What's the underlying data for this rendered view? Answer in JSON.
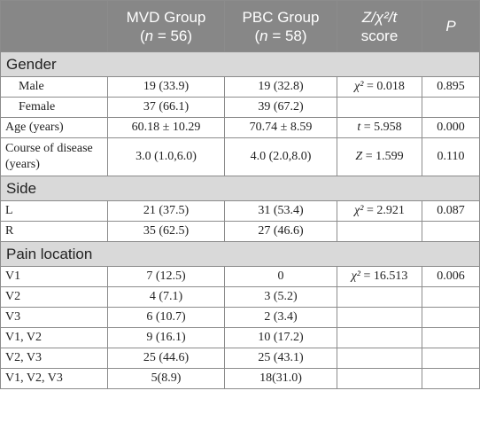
{
  "header": {
    "col0": "",
    "col1_line1": "MVD Group",
    "col1_line2_pre": "(",
    "col1_n": "n",
    "col1_line2_post": " = 56)",
    "col2_line1": "PBC Group",
    "col2_line2_pre": "(",
    "col2_n": "n",
    "col2_line2_post": " = 58)",
    "col3_line1": "Z/χ²/t",
    "col3_line2": "score",
    "col4": "P"
  },
  "sections": [
    {
      "title": "Gender",
      "rows": [
        {
          "label": "Male",
          "mvd": "19 (33.9)",
          "pbc": "19 (32.8)",
          "stat": "χ² = 0.018",
          "p": "0.895"
        },
        {
          "label": "Female",
          "mvd": "37 (66.1)",
          "pbc": "39 (67.2)",
          "stat": "",
          "p": ""
        },
        {
          "label": "Age (years)",
          "mvd": "60.18 ± 10.29",
          "pbc": "70.74 ± 8.59",
          "stat": "t = 5.958",
          "p": "0.000"
        },
        {
          "label": "Course of disease (years)",
          "mvd": "3.0 (1.0,6.0)",
          "pbc": "4.0 (2.0,8.0)",
          "stat": "Z = 1.599",
          "p": "0.110"
        }
      ]
    },
    {
      "title": "Side",
      "rows": [
        {
          "label": "L",
          "mvd": "21 (37.5)",
          "pbc": "31 (53.4)",
          "stat": "χ² = 2.921",
          "p": "0.087"
        },
        {
          "label": "R",
          "mvd": "35 (62.5)",
          "pbc": "27 (46.6)",
          "stat": "",
          "p": ""
        }
      ]
    },
    {
      "title": "Pain location",
      "rows": [
        {
          "label": "V1",
          "mvd": "7 (12.5)",
          "pbc": "0",
          "stat": "χ² = 16.513",
          "p": "0.006"
        },
        {
          "label": "V2",
          "mvd": "4 (7.1)",
          "pbc": "3 (5.2)",
          "stat": "",
          "p": ""
        },
        {
          "label": "V3",
          "mvd": "6 (10.7)",
          "pbc": "2 (3.4)",
          "stat": "",
          "p": ""
        },
        {
          "label": "V1, V2",
          "mvd": "9 (16.1)",
          "pbc": "10 (17.2)",
          "stat": "",
          "p": ""
        },
        {
          "label": "V2, V3",
          "mvd": "25 (44.6)",
          "pbc": "25 (43.1)",
          "stat": "",
          "p": ""
        },
        {
          "label": "V1, V2, V3",
          "mvd": "5(8.9)",
          "pbc": "18(31.0)",
          "stat": "",
          "p": ""
        }
      ]
    }
  ]
}
